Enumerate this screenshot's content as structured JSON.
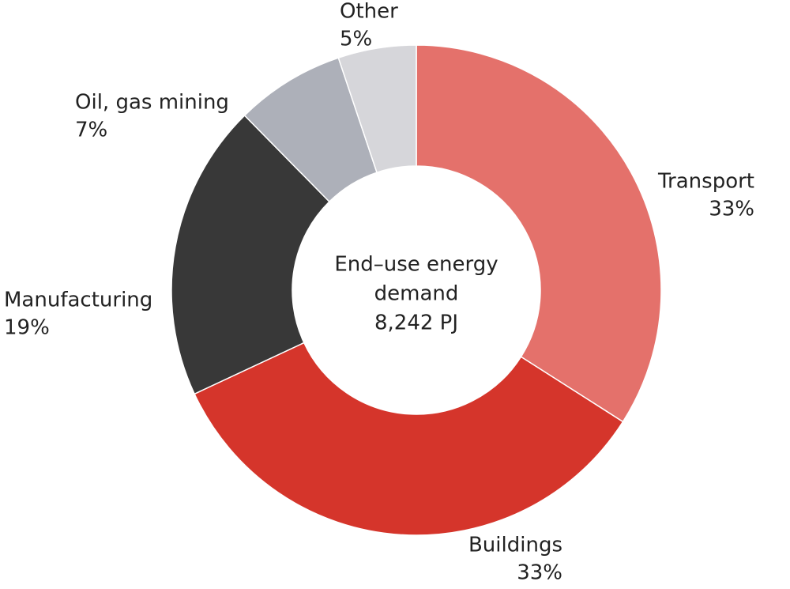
{
  "chart_data": {
    "type": "donut",
    "center_text": [
      "End–use energy",
      "demand",
      "8,242 PJ"
    ],
    "categories": [
      "Transport",
      "Buildings",
      "Manufacturing",
      "Oil, gas mining",
      "Other"
    ],
    "values": [
      33,
      33,
      19,
      7,
      5
    ],
    "value_labels": [
      "33%",
      "33%",
      "19%",
      "7%",
      "5%"
    ],
    "colors": [
      "#e4716b",
      "#d5352b",
      "#383838",
      "#adb0b9",
      "#d6d6da"
    ]
  }
}
